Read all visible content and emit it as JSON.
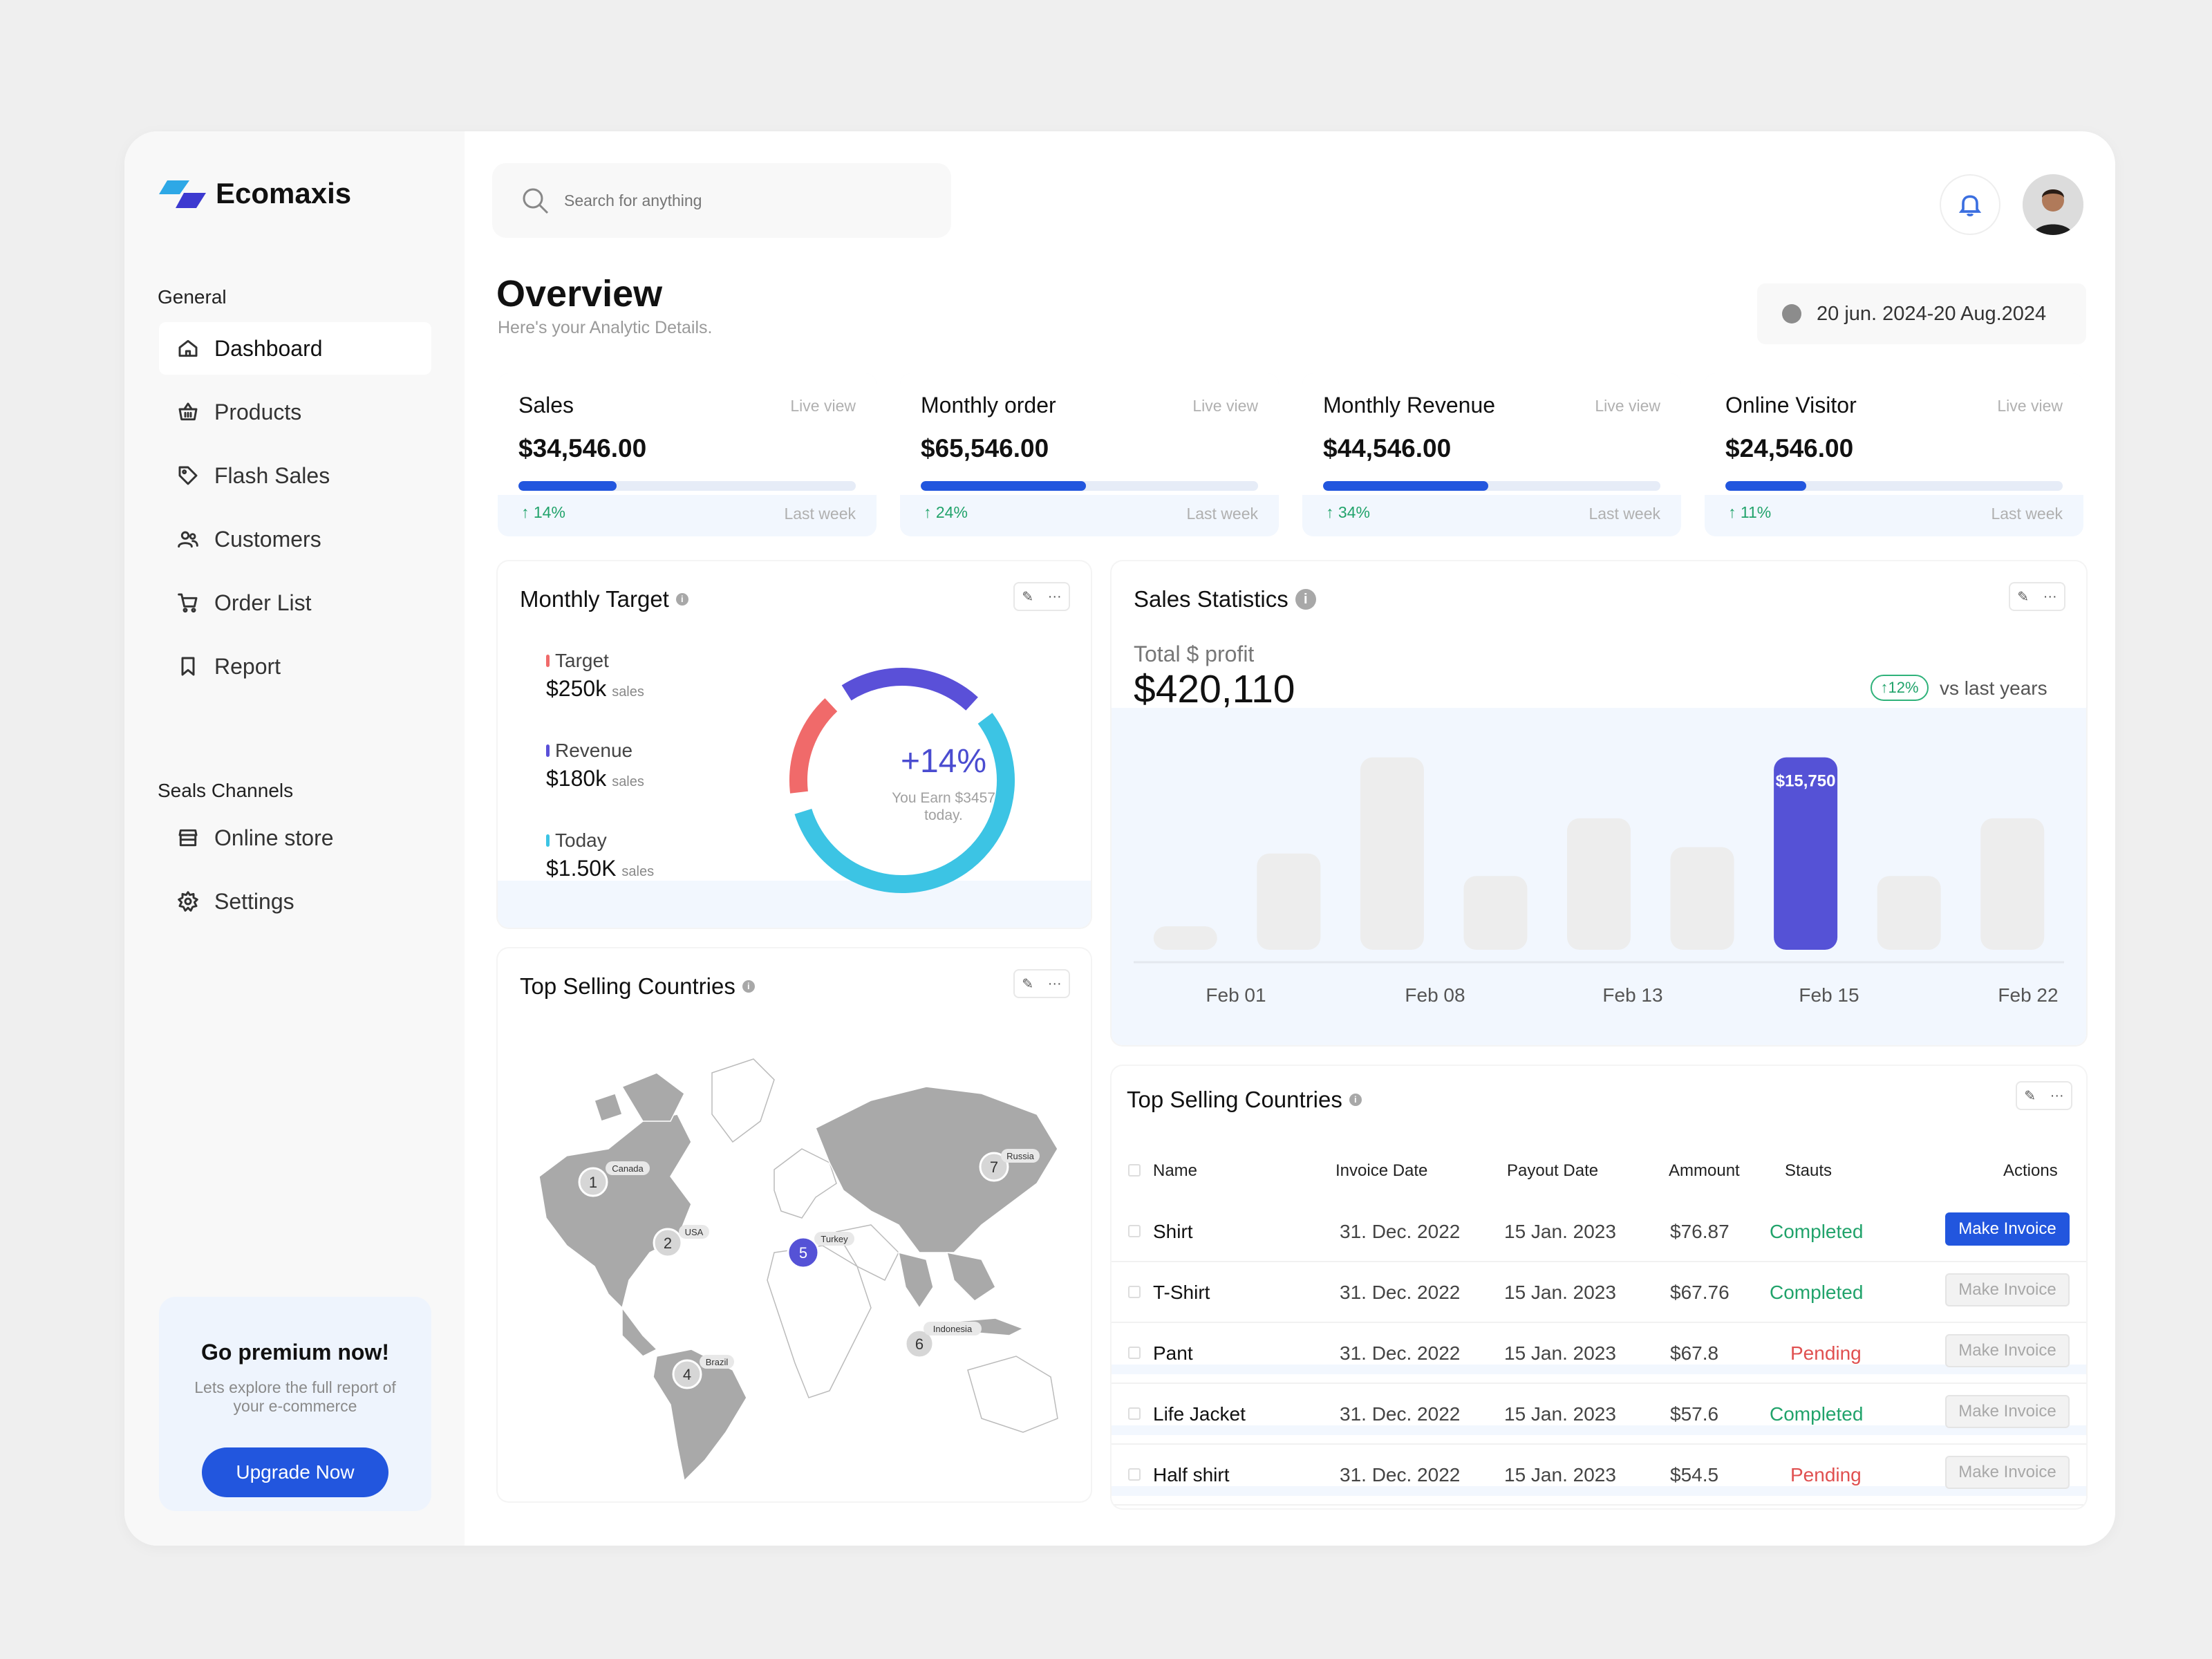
{
  "app": {
    "name": "Ecomaxis",
    "accent": "#2256de"
  },
  "sidebar": {
    "general_label": "General",
    "items": [
      {
        "label": "Dashboard",
        "icon": "home-icon",
        "active": true
      },
      {
        "label": "Products",
        "icon": "basket-icon"
      },
      {
        "label": "Flash Sales",
        "icon": "tag-icon"
      },
      {
        "label": "Customers",
        "icon": "users-icon"
      },
      {
        "label": "Order List",
        "icon": "cart-icon"
      },
      {
        "label": "Report",
        "icon": "bookmark-icon"
      }
    ],
    "channels_label": "Seals Channels",
    "channels": [
      {
        "label": "Online store",
        "icon": "store-icon"
      },
      {
        "label": "Settings",
        "icon": "gear-icon"
      }
    ],
    "premium": {
      "title": "Go premium now!",
      "text": "Lets explore the full report of your e-commerce",
      "button": "Upgrade Now"
    }
  },
  "header": {
    "search_placeholder": "Search for anything",
    "title": "Overview",
    "subtitle": "Here's your Analytic Details.",
    "date_range": "20 jun. 2024-20 Aug.2024"
  },
  "stats": [
    {
      "label": "Sales",
      "live": "Live view",
      "value": "$34,546.00",
      "change": "↑ 14%",
      "period": "Last week",
      "progress": 0.29
    },
    {
      "label": "Monthly order",
      "live": "Live view",
      "value": "$65,546.00",
      "change": "↑ 24%",
      "period": "Last week",
      "progress": 0.49
    },
    {
      "label": "Monthly Revenue",
      "live": "Live view",
      "value": "$44,546.00",
      "change": "↑ 34%",
      "period": "Last week",
      "progress": 0.49
    },
    {
      "label": "Online Visitor",
      "live": "Live view",
      "value": "$24,546.00",
      "change": "↑ 11%",
      "period": "Last week",
      "progress": 0.24
    }
  ],
  "monthly_target": {
    "title": "Monthly Target",
    "items": [
      {
        "label": "Target",
        "value": "$250k",
        "unit": "sales",
        "color": "#f06a6a"
      },
      {
        "label": "Revenue",
        "value": "$180k",
        "unit": "sales",
        "color": "#5a50d8"
      },
      {
        "label": "Today",
        "value": "$1.50K",
        "unit": "sales",
        "color": "#3cc4e4"
      }
    ],
    "donut_pct": "+14%",
    "donut_sub": "You Earn $3457 today.",
    "donut_segments": [
      {
        "name": "Revenue",
        "fraction": 0.21,
        "color": "#5a50d8"
      },
      {
        "name": "Today",
        "fraction": 0.56,
        "color": "#3cc4e4"
      },
      {
        "name": "Target",
        "fraction": 0.15,
        "color": "#f06a6a"
      }
    ]
  },
  "sales_statistics": {
    "title": "Sales Statistics",
    "kicker": "Total $ profit",
    "total": "$420,110",
    "badge": "↑12%",
    "vs": "vs last years",
    "highlight_label": "$15,750"
  },
  "chart_data": {
    "type": "bar",
    "values": [
      1.4,
      6.0,
      12.0,
      4.6,
      8.2,
      6.4,
      12.0,
      4.6,
      8.2
    ],
    "highlight_index": 6,
    "x_tick_labels": [
      "Feb 01",
      "Feb 08",
      "Feb 13",
      "Feb 15",
      "Feb 22"
    ],
    "bar_color": "#ededed",
    "highlight_color": "#5552d6",
    "ylim": [
      0,
      12.5
    ]
  },
  "map_panel": {
    "title": "Top Selling Countries",
    "markers": [
      {
        "num": "1",
        "country": "Canada"
      },
      {
        "num": "2",
        "country": "USA"
      },
      {
        "num": "4",
        "country": "Brazil"
      },
      {
        "num": "5",
        "country": "Turkey"
      },
      {
        "num": "6",
        "country": "Indonesia"
      },
      {
        "num": "7",
        "country": "Russia"
      }
    ]
  },
  "table": {
    "title": "Top Selling Countries",
    "headers": [
      "Name",
      "Invoice Date",
      "Payout Date",
      "Ammount",
      "Stauts",
      "Actions"
    ],
    "rows": [
      {
        "name": "Shirt",
        "invoice": "31. Dec. 2022",
        "payout": "15 Jan. 2023",
        "amount": "$76.87",
        "status": "Completed",
        "action": "Make Invoice"
      },
      {
        "name": "T-Shirt",
        "invoice": "31. Dec. 2022",
        "payout": "15 Jan. 2023",
        "amount": "$67.76",
        "status": "Completed",
        "action": "Make Invoice"
      },
      {
        "name": "Pant",
        "invoice": "31. Dec. 2022",
        "payout": "15 Jan. 2023",
        "amount": "$67.8",
        "status": "Pending",
        "action": "Make Invoice"
      },
      {
        "name": "Life Jacket",
        "invoice": "31. Dec. 2022",
        "payout": "15 Jan. 2023",
        "amount": "$57.6",
        "status": "Completed",
        "action": "Make Invoice"
      },
      {
        "name": "Half shirt",
        "invoice": "31. Dec. 2022",
        "payout": "15 Jan. 2023",
        "amount": "$54.5",
        "status": "Pending",
        "action": "Make Invoice"
      }
    ]
  }
}
